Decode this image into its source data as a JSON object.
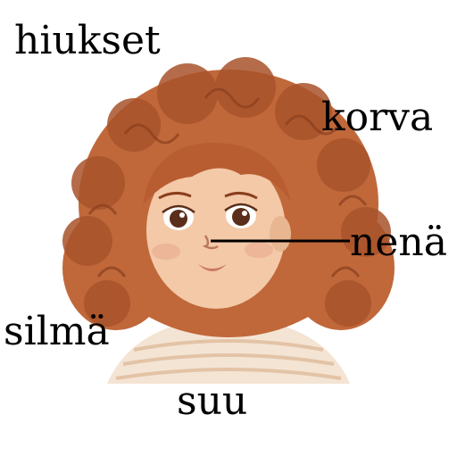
{
  "labels": {
    "hair": "hiukset",
    "ear": "korva",
    "nose": "nenä",
    "eye": "silmä",
    "mouth": "suu"
  },
  "colors": {
    "hair": "#c0683a",
    "hair_dark": "#8a3f1e",
    "skin": "#f3c9a8",
    "skin_shadow": "#d99a76",
    "eye": "#5a2e1a",
    "lips": "#c97a64",
    "shirt": "#f4e4d4",
    "shirt_stripe": "#e2c0a2",
    "text": "#000000",
    "pointer": "#000000"
  }
}
